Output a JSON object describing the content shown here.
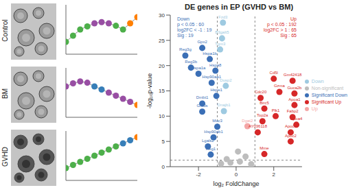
{
  "images": {
    "labels": [
      "Control",
      "BM",
      "GVHD"
    ]
  },
  "chart_data": [
    {
      "type": "scatter",
      "x": [
        0,
        1,
        2,
        3,
        4,
        5,
        6,
        7,
        8,
        9,
        10
      ],
      "values": [
        2,
        3,
        4,
        4.5,
        5,
        5.2,
        5,
        4.6,
        4,
        5,
        6
      ],
      "colors": [
        "#4daf4a",
        "#4daf4a",
        "#4daf4a",
        "#4daf4a",
        "#984ea3",
        "#984ea3",
        "#984ea3",
        "#4daf4a",
        "#4daf4a",
        "#ff7f00",
        "#ff7f00"
      ],
      "xlim": [
        0,
        10
      ],
      "ylim": [
        0,
        8
      ],
      "tick_labels": false,
      "marker": "circle",
      "line_style": "solid"
    },
    {
      "type": "scatter",
      "x": [
        0,
        1,
        2,
        3,
        4,
        5,
        6,
        7,
        8,
        9,
        10
      ],
      "values": [
        5,
        5.5,
        5.8,
        5.6,
        5,
        4.5,
        4,
        3.5,
        3,
        2.5,
        2
      ],
      "colors": [
        "#984ea3",
        "#984ea3",
        "#984ea3",
        "#984ea3",
        "#377eb8",
        "#377eb8",
        "#984ea3",
        "#984ea3",
        "#984ea3",
        "#984ea3",
        "#ff7f00"
      ],
      "xlim": [
        0,
        10
      ],
      "ylim": [
        0,
        8
      ],
      "tick_labels": false,
      "marker": "circle",
      "line_style": "solid"
    },
    {
      "type": "scatter",
      "x": [
        0,
        1,
        2,
        3,
        4,
        5,
        6,
        7,
        8,
        9,
        10
      ],
      "values": [
        2,
        2.5,
        3,
        3.5,
        4,
        4.5,
        5,
        5.5,
        6,
        6.5,
        7
      ],
      "colors": [
        "#4daf4a",
        "#4daf4a",
        "#4daf4a",
        "#4daf4a",
        "#4daf4a",
        "#4daf4a",
        "#4daf4a",
        "#4daf4a",
        "#377eb8",
        "#377eb8",
        "#ff7f00"
      ],
      "xlim": [
        0,
        10
      ],
      "ylim": [
        0,
        8
      ],
      "tick_labels": false,
      "marker": "circle",
      "line_style": "solid"
    },
    {
      "type": "scatter",
      "title": "DE genes in EP (GVHD vs BM)",
      "x_label": "log₂ FoldChange",
      "y_label": "-log₁₀p-value",
      "xlim": [
        -3.5,
        3.5
      ],
      "xticks": [
        -2,
        0,
        2
      ],
      "ylim": [
        0,
        30
      ],
      "yticks": [
        0,
        5,
        10,
        15,
        20,
        25,
        30
      ],
      "thresholds": {
        "x": [
          -1,
          1
        ],
        "y": 1.3
      },
      "annotations": {
        "down": [
          "Down",
          "p < 0.05 : 60",
          "log2FC < -1 : 19",
          "Sig : 19"
        ],
        "up": [
          "Up",
          "p < 0.05 : 192",
          "log2FC > 1 : 65",
          "Sig : 65"
        ]
      },
      "legend": "right",
      "series": [
        {
          "name": "Significant Up",
          "color": "#d62728",
          "x": [
            3.0,
            2.0,
            2.3,
            3.1,
            1.3,
            3.1,
            1.5,
            2.1,
            3.0,
            3.2,
            1.4,
            2.9,
            2.9,
            1.15,
            1.5
          ],
          "values": [
            17.0,
            17.4,
            14.8,
            14.5,
            13.6,
            12.2,
            11.5,
            10.0,
            9.8,
            8.3,
            9.0,
            6.8,
            5.0,
            6.8,
            2.5
          ],
          "labels": [
            "Gm42418",
            "Cd5l",
            "Gzma",
            "Guca2b",
            "Cdc20",
            "Apoa1",
            "Birc5",
            "Plk1",
            "Fabp2",
            "Apoa4",
            "Top2a",
            "Apoc3",
            "Apoc2",
            "AY036118",
            "Mme"
          ]
        },
        {
          "name": "Significant Down",
          "color": "#3b6fb6",
          "x": [
            -1.8,
            -2.7,
            -2.4,
            -1.4,
            -2.0,
            -1.1,
            -1.3,
            -1.8,
            -1.8,
            -1.05,
            -1.0,
            -1.2,
            -1.5,
            -1.35
          ],
          "values": [
            23.5,
            22.0,
            19.6,
            21.3,
            18.4,
            19.0,
            16.6,
            12.5,
            10.9,
            14.0,
            7.9,
            5.8,
            4.0,
            2.4
          ],
          "labels": [
            "Gpx2",
            "Reg3g",
            "Reg3b",
            "Hspa1b",
            "Hspa1a",
            "Hspa8",
            "Hsp90aa1",
            "Dmbt1",
            "Gmds",
            "Hspe1",
            "Muc3",
            "Hsp90ab1",
            "Lgals2",
            "Reg1"
          ]
        },
        {
          "name": "Up",
          "color": "#f4a6a6",
          "x": [
            0.6
          ],
          "values": [
            8.0
          ],
          "labels": [
            "Dgat2"
          ]
        },
        {
          "name": "Down",
          "color": "#9ecae1",
          "x": [
            -0.7,
            -0.75,
            -0.85,
            -0.55,
            -0.65
          ],
          "values": [
            28.5,
            25.4,
            23.2,
            16.0,
            11.0
          ],
          "labels": [
            "Fzd3",
            "B3galt5",
            "Tgm3",
            "Dusp2",
            "Dnajb1"
          ]
        },
        {
          "name": "Non-significant",
          "color": "#bdbdbd",
          "x": [
            0.2,
            -0.3,
            0.5,
            -0.5,
            0.1,
            0.8,
            -0.8
          ],
          "values": [
            1.0,
            0.8,
            2.0,
            1.5,
            3.0,
            0.5,
            0.6
          ]
        }
      ]
    }
  ]
}
